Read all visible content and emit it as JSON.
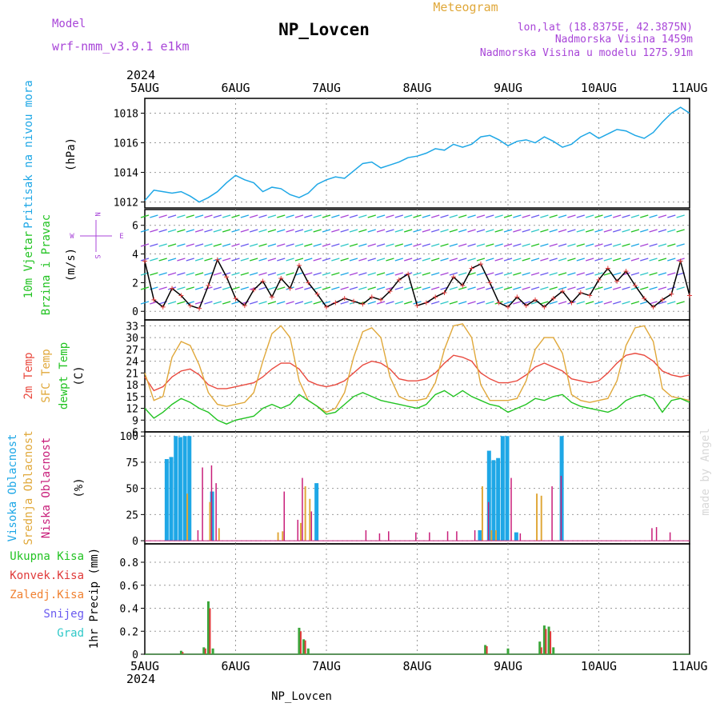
{
  "header": {
    "model_label": "Model",
    "model_value": "wrf-nmm_v3.9.1  e1km",
    "station": "NP_Lovcen",
    "title": "Meteogram",
    "lonlat": "lon,lat (18.8375E, 42.3875N)",
    "elevation": "Nadmorska Visina 1459m",
    "model_elevation": "Nadmorska Visina u modelu 1275.91m",
    "year": "2024",
    "footer_station": "NP_Lovcen",
    "watermark": "made by Angel"
  },
  "colors": {
    "pressure": "#1ea7e6",
    "temp2m": "#e94a3f",
    "sfc": "#e0a83a",
    "dewpt": "#22c322",
    "high_cloud": "#1ea7e6",
    "mid_cloud": "#e0a83a",
    "low_cloud": "#c81e7a",
    "precip": "#3aa63a",
    "convective": "#e03a3a",
    "title_purple": "#a845d8",
    "grid": "#999999"
  },
  "chart_data": [
    {
      "type": "line",
      "panel": "pressure",
      "ylabel_title": "Pritisak na nivou mora",
      "ylabel_unit": "(hPa)",
      "x_categories": [
        "5AUG",
        "6AUG",
        "7AUG",
        "8AUG",
        "9AUG",
        "10AUG",
        "11AUG"
      ],
      "xlim_days": [
        0,
        6
      ],
      "ylim": [
        1011.6,
        1019.0
      ],
      "yticks": [
        1012,
        1014,
        1016,
        1018
      ],
      "series": [
        {
          "x": [
            0.0,
            0.1,
            0.2,
            0.3,
            0.4,
            0.5,
            0.6,
            0.7,
            0.8,
            0.9,
            1.0,
            1.1,
            1.2,
            1.3,
            1.4,
            1.5,
            1.6,
            1.7,
            1.8,
            1.9,
            2.0,
            2.1,
            2.2,
            2.3,
            2.4,
            2.5,
            2.6,
            2.7,
            2.8,
            2.9,
            3.0,
            3.1,
            3.2,
            3.3,
            3.4,
            3.5,
            3.6,
            3.7,
            3.8,
            3.9,
            4.0,
            4.1,
            4.2,
            4.3,
            4.4,
            4.5,
            4.6,
            4.7,
            4.8,
            4.9,
            5.0,
            5.1,
            5.2,
            5.3,
            5.4,
            5.5,
            5.6,
            5.7,
            5.8,
            5.9,
            6.0
          ],
          "values": [
            1012.1,
            1012.8,
            1012.7,
            1012.6,
            1012.7,
            1012.4,
            1012.0,
            1012.3,
            1012.7,
            1013.3,
            1013.8,
            1013.5,
            1013.3,
            1012.7,
            1013.0,
            1012.9,
            1012.5,
            1012.3,
            1012.6,
            1013.2,
            1013.5,
            1013.7,
            1013.6,
            1014.1,
            1014.6,
            1014.7,
            1014.3,
            1014.5,
            1014.7,
            1015.0,
            1015.1,
            1015.3,
            1015.6,
            1015.5,
            1015.9,
            1015.7,
            1015.9,
            1016.4,
            1016.5,
            1016.2,
            1015.8,
            1016.1,
            1016.2,
            1016.0,
            1016.4,
            1016.1,
            1015.7,
            1015.9,
            1016.4,
            1016.7,
            1016.3,
            1016.6,
            1016.9,
            1016.8,
            1016.5,
            1016.3,
            1016.7,
            1017.4,
            1018.0,
            1018.4,
            1018.0
          ]
        }
      ]
    },
    {
      "type": "line",
      "panel": "wind",
      "ylabel_title_1": "10m Vjetar",
      "ylabel_title_2": "Brzina i Pravac",
      "ylabel_unit": "(m/s)",
      "compass": {
        "n": "N",
        "s": "S",
        "w": "W",
        "e": "E"
      },
      "xlim_days": [
        0,
        6
      ],
      "ylim": [
        -0.6,
        7.1
      ],
      "yticks": [
        0,
        2,
        4,
        6
      ],
      "series": [
        {
          "name": "speed",
          "x": [
            0.0,
            0.1,
            0.2,
            0.3,
            0.4,
            0.5,
            0.6,
            0.7,
            0.8,
            0.9,
            1.0,
            1.1,
            1.2,
            1.3,
            1.4,
            1.5,
            1.6,
            1.7,
            1.8,
            1.9,
            2.0,
            2.1,
            2.2,
            2.3,
            2.4,
            2.5,
            2.6,
            2.7,
            2.8,
            2.9,
            3.0,
            3.1,
            3.2,
            3.3,
            3.4,
            3.5,
            3.6,
            3.7,
            3.8,
            3.9,
            4.0,
            4.1,
            4.2,
            4.3,
            4.4,
            4.5,
            4.6,
            4.7,
            4.8,
            4.9,
            5.0,
            5.1,
            5.2,
            5.3,
            5.4,
            5.5,
            5.6,
            5.7,
            5.8,
            5.9,
            6.0
          ],
          "values": [
            3.5,
            0.8,
            0.3,
            1.6,
            1.1,
            0.4,
            0.2,
            1.8,
            3.6,
            2.4,
            0.9,
            0.4,
            1.5,
            2.1,
            1.0,
            2.3,
            1.6,
            3.2,
            2.0,
            1.2,
            0.3,
            0.6,
            0.9,
            0.7,
            0.5,
            1.0,
            0.8,
            1.4,
            2.2,
            2.6,
            0.4,
            0.6,
            1.0,
            1.3,
            2.4,
            1.8,
            3.0,
            3.3,
            2.0,
            0.6,
            0.3,
            1.0,
            0.4,
            0.8,
            0.3,
            0.9,
            1.4,
            0.6,
            1.3,
            1.1,
            2.2,
            3.0,
            2.1,
            2.8,
            1.8,
            0.9,
            0.3,
            0.8,
            1.2,
            3.5,
            1.1
          ]
        }
      ]
    },
    {
      "type": "line",
      "panel": "temperature",
      "ylabel_title_1": "2m Temp",
      "ylabel_title_2": "SFC Temp",
      "ylabel_title_3": "dewpt Temp",
      "ylabel_unit": "(C)",
      "xlim_days": [
        0,
        6
      ],
      "ylim": [
        6,
        34.5
      ],
      "yticks": [
        6,
        9,
        12,
        15,
        18,
        21,
        24,
        27,
        30,
        33
      ],
      "x": [
        0.0,
        0.1,
        0.2,
        0.3,
        0.4,
        0.5,
        0.6,
        0.7,
        0.8,
        0.9,
        1.0,
        1.1,
        1.2,
        1.3,
        1.4,
        1.5,
        1.6,
        1.7,
        1.8,
        1.9,
        2.0,
        2.1,
        2.2,
        2.3,
        2.4,
        2.5,
        2.6,
        2.7,
        2.8,
        2.9,
        3.0,
        3.1,
        3.2,
        3.3,
        3.4,
        3.5,
        3.6,
        3.7,
        3.8,
        3.9,
        4.0,
        4.1,
        4.2,
        4.3,
        4.4,
        4.5,
        4.6,
        4.7,
        4.8,
        4.9,
        5.0,
        5.1,
        5.2,
        5.3,
        5.4,
        5.5,
        5.6,
        5.7,
        5.8,
        5.9,
        6.0
      ],
      "series": [
        {
          "name": "2m",
          "values": [
            20.0,
            16.5,
            17.5,
            20.0,
            21.5,
            22.0,
            20.5,
            18.0,
            17.0,
            17.0,
            17.5,
            18.0,
            18.5,
            20.0,
            22.0,
            23.5,
            23.5,
            22.0,
            19.0,
            18.0,
            17.5,
            18.0,
            19.0,
            21.0,
            23.0,
            24.0,
            23.5,
            22.0,
            19.5,
            19.0,
            19.0,
            19.5,
            21.0,
            23.5,
            25.5,
            25.0,
            24.0,
            21.0,
            19.5,
            18.5,
            18.5,
            19.0,
            20.5,
            22.5,
            23.5,
            22.5,
            21.5,
            19.5,
            19.0,
            18.5,
            19.0,
            21.0,
            23.5,
            25.5,
            26.0,
            25.5,
            24.0,
            21.5,
            20.5,
            20.0,
            20.5
          ]
        },
        {
          "name": "sfc",
          "values": [
            21.0,
            14.0,
            15.0,
            25.0,
            29.0,
            28.0,
            23.0,
            16.0,
            13.0,
            12.5,
            13.0,
            13.5,
            16.0,
            24.0,
            31.0,
            33.0,
            30.0,
            19.0,
            14.0,
            12.5,
            11.0,
            12.0,
            16.0,
            25.0,
            31.5,
            32.5,
            30.0,
            20.0,
            15.0,
            14.0,
            14.0,
            14.5,
            18.5,
            27.0,
            33.0,
            33.5,
            30.0,
            18.0,
            14.0,
            14.0,
            14.0,
            14.5,
            19.0,
            27.0,
            30.0,
            30.0,
            26.0,
            15.5,
            14.0,
            13.5,
            14.0,
            14.5,
            19.0,
            28.0,
            32.5,
            33.0,
            29.0,
            17.0,
            15.0,
            14.5,
            14.0
          ]
        },
        {
          "name": "dewpt",
          "values": [
            12.0,
            9.5,
            11.0,
            13.0,
            14.5,
            13.5,
            12.0,
            11.0,
            9.0,
            8.0,
            9.0,
            9.5,
            10.0,
            12.0,
            13.0,
            12.0,
            13.0,
            15.5,
            14.0,
            12.5,
            10.5,
            11.0,
            13.0,
            15.0,
            16.0,
            15.0,
            14.0,
            13.5,
            13.0,
            12.5,
            12.0,
            13.0,
            15.5,
            16.5,
            15.0,
            16.5,
            15.0,
            14.0,
            13.0,
            12.5,
            11.0,
            12.0,
            13.0,
            14.5,
            14.0,
            15.0,
            15.5,
            13.5,
            12.5,
            12.0,
            11.5,
            11.0,
            12.0,
            14.0,
            15.0,
            15.5,
            14.5,
            11.0,
            14.0,
            14.5,
            13.5
          ]
        }
      ]
    },
    {
      "type": "bar",
      "panel": "cloud",
      "ylabel_title_1": "Visoka Oblacnost",
      "ylabel_title_2": "Srednja Oblacnost",
      "ylabel_title_3": "Niska Oblacnost",
      "ylabel_unit": "(%)",
      "xlim_days": [
        0,
        6
      ],
      "ylim": [
        -3,
        104
      ],
      "yticks": [
        0,
        25,
        50,
        75,
        100
      ],
      "series": [
        {
          "name": "high",
          "x": [
            0.25,
            0.3,
            0.35,
            0.4,
            0.45,
            0.5,
            0.75,
            1.9,
            3.7,
            3.8,
            3.85,
            3.9,
            3.95,
            4.0,
            4.1,
            4.6
          ],
          "values": [
            78,
            80,
            100,
            99,
            100,
            100,
            47,
            55,
            10,
            86,
            77,
            79,
            100,
            100,
            8,
            100
          ]
        },
        {
          "name": "mid",
          "x": [
            0.45,
            0.7,
            0.8,
            1.45,
            1.5,
            1.7,
            1.75,
            1.8,
            3.7,
            3.8,
            3.85,
            4.3,
            4.35
          ],
          "values": [
            45,
            37,
            12,
            8,
            9,
            17,
            52,
            40,
            52,
            10,
            10,
            45,
            43
          ]
        },
        {
          "name": "low",
          "x": [
            0.55,
            0.6,
            0.7,
            0.75,
            1.5,
            1.65,
            1.7,
            1.8,
            2.4,
            2.55,
            2.65,
            2.95,
            3.1,
            3.3,
            3.4,
            3.6,
            3.75,
            4.0,
            4.1,
            4.45,
            4.55,
            5.55,
            5.6,
            5.75
          ],
          "values": [
            10,
            70,
            72,
            55,
            47,
            20,
            60,
            28,
            10,
            7,
            9,
            8,
            8,
            9,
            9,
            10,
            37,
            60,
            7,
            52,
            62,
            12,
            13,
            8
          ]
        }
      ]
    },
    {
      "type": "bar",
      "panel": "precip",
      "ylabel_unit": "1hr Precip (mm)",
      "legend": [
        "Ukupna Kisa",
        "Konvek.Kisa",
        "Zaledj.Kisa",
        "Snijeg",
        "Grad"
      ],
      "legend_colors": [
        "#22c322",
        "#e03a3a",
        "#f08030",
        "#6a5af0",
        "#30c8c8"
      ],
      "x_categories": [
        "5AUG",
        "6AUG",
        "7AUG",
        "8AUG",
        "9AUG",
        "10AUG",
        "11AUG"
      ],
      "xlim_days": [
        0,
        6
      ],
      "ylim": [
        0,
        0.96
      ],
      "yticks": [
        0,
        0.2,
        0.4,
        0.6,
        0.8
      ],
      "series": [
        {
          "name": "Ukupna Kisa",
          "x": [
            0.4,
            0.65,
            0.7,
            0.75,
            1.7,
            1.75,
            1.8,
            3.75,
            4.0,
            4.35,
            4.4,
            4.45,
            4.5
          ],
          "values": [
            0.03,
            0.06,
            0.46,
            0.05,
            0.23,
            0.13,
            0.05,
            0.08,
            0.05,
            0.11,
            0.25,
            0.24,
            0.06
          ]
        },
        {
          "name": "Konvek.Kisa",
          "x": [
            0.4,
            0.65,
            0.7,
            1.7,
            1.75,
            3.75,
            4.35,
            4.4,
            4.45
          ],
          "values": [
            0.02,
            0.05,
            0.4,
            0.2,
            0.12,
            0.07,
            0.06,
            0.22,
            0.2
          ]
        }
      ]
    }
  ]
}
